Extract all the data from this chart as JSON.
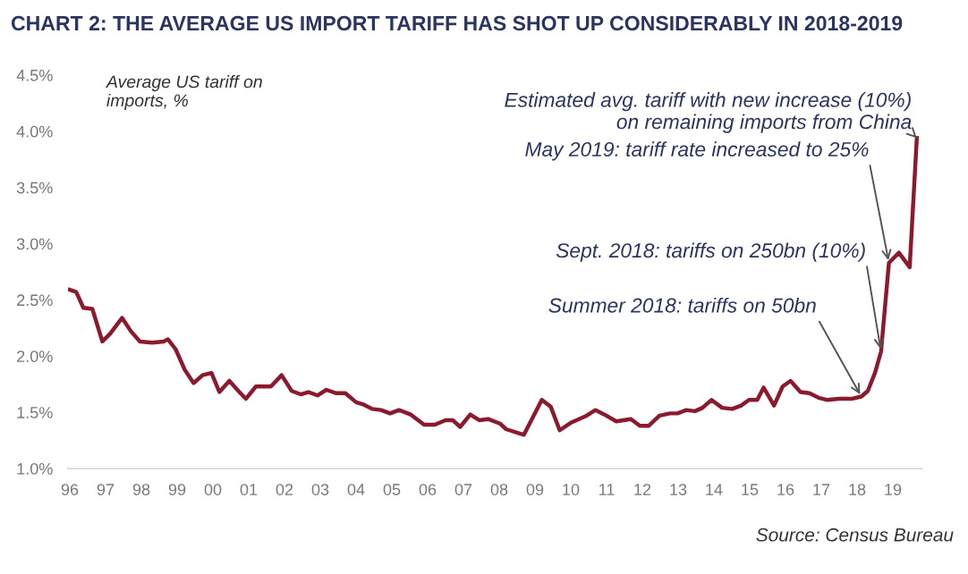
{
  "chart_data": {
    "type": "line",
    "title": "CHART 2: THE AVERAGE US IMPORT TARIFF HAS SHOT UP CONSIDERABLY IN 2018-2019",
    "ylabel": "Average US tariff on\nimports, %",
    "x": [
      1996.0,
      1996.18,
      1996.38,
      1996.63,
      1996.91,
      1997.13,
      1997.46,
      1997.71,
      1997.96,
      1998.3,
      1998.63,
      1998.74,
      1998.96,
      1999.21,
      1999.46,
      1999.71,
      1999.96,
      2000.18,
      2000.46,
      2000.71,
      2000.92,
      2001.2,
      2001.62,
      2001.92,
      2002.2,
      2002.45,
      2002.67,
      2002.92,
      2003.17,
      2003.45,
      2003.7,
      2004.0,
      2004.2,
      2004.45,
      2004.7,
      2004.95,
      2005.2,
      2005.53,
      2005.9,
      2006.2,
      2006.5,
      2006.7,
      2006.91,
      2007.19,
      2007.44,
      2007.69,
      2008.02,
      2008.19,
      2008.69,
      2009.19,
      2009.44,
      2009.69,
      2010.02,
      2010.44,
      2010.69,
      2010.94,
      2011.27,
      2011.68,
      2011.93,
      2012.18,
      2012.48,
      2012.77,
      2012.98,
      2013.23,
      2013.47,
      2013.68,
      2013.93,
      2014.23,
      2014.51,
      2014.76,
      2014.98,
      2015.21,
      2015.39,
      2015.68,
      2015.92,
      2016.14,
      2016.42,
      2016.67,
      2016.92,
      2017.17,
      2017.5,
      2017.84,
      2018.12,
      2018.3,
      2018.5,
      2018.67,
      2018.89,
      2019.17,
      2019.47,
      2019.67
    ],
    "series": [
      {
        "color": "#8b1a2e",
        "values": [
          2.59,
          2.57,
          2.43,
          2.42,
          2.13,
          2.2,
          2.34,
          2.22,
          2.13,
          2.12,
          2.13,
          2.15,
          2.06,
          1.88,
          1.76,
          1.83,
          1.85,
          1.68,
          1.78,
          1.69,
          1.62,
          1.73,
          1.73,
          1.83,
          1.69,
          1.66,
          1.68,
          1.65,
          1.7,
          1.67,
          1.67,
          1.59,
          1.57,
          1.53,
          1.52,
          1.49,
          1.52,
          1.48,
          1.39,
          1.39,
          1.43,
          1.43,
          1.37,
          1.48,
          1.43,
          1.44,
          1.4,
          1.35,
          1.3,
          1.61,
          1.55,
          1.34,
          1.41,
          1.47,
          1.52,
          1.48,
          1.42,
          1.44,
          1.38,
          1.38,
          1.47,
          1.49,
          1.49,
          1.52,
          1.51,
          1.54,
          1.61,
          1.54,
          1.53,
          1.56,
          1.61,
          1.61,
          1.72,
          1.56,
          1.73,
          1.78,
          1.68,
          1.67,
          1.63,
          1.61,
          1.62,
          1.62,
          1.64,
          1.69,
          1.85,
          2.04,
          2.83,
          2.92,
          2.79,
          3.94
        ]
      }
    ],
    "xlim": [
      1995.95,
      2019.8
    ],
    "xticks": [
      {
        "value": 1996,
        "label": "96"
      },
      {
        "value": 1997,
        "label": "97"
      },
      {
        "value": 1998,
        "label": "98"
      },
      {
        "value": 1999,
        "label": "99"
      },
      {
        "value": 2000,
        "label": "00"
      },
      {
        "value": 2001,
        "label": "01"
      },
      {
        "value": 2002,
        "label": "02"
      },
      {
        "value": 2003,
        "label": "03"
      },
      {
        "value": 2004,
        "label": "04"
      },
      {
        "value": 2005,
        "label": "05"
      },
      {
        "value": 2006,
        "label": "06"
      },
      {
        "value": 2007,
        "label": "07"
      },
      {
        "value": 2008,
        "label": "08"
      },
      {
        "value": 2009,
        "label": "09"
      },
      {
        "value": 2010,
        "label": "10"
      },
      {
        "value": 2011,
        "label": "11"
      },
      {
        "value": 2012,
        "label": "12"
      },
      {
        "value": 2013,
        "label": "13"
      },
      {
        "value": 2014,
        "label": "14"
      },
      {
        "value": 2015,
        "label": "15"
      },
      {
        "value": 2016,
        "label": "16"
      },
      {
        "value": 2017,
        "label": "17"
      },
      {
        "value": 2018,
        "label": "18"
      },
      {
        "value": 2019,
        "label": "19"
      }
    ],
    "ylim": [
      1.0,
      4.5
    ],
    "yticks": [
      {
        "value": 1.0,
        "label": "1.0%"
      },
      {
        "value": 1.5,
        "label": "1.5%"
      },
      {
        "value": 2.0,
        "label": "2.0%"
      },
      {
        "value": 2.5,
        "label": "2.5%"
      },
      {
        "value": 3.0,
        "label": "3.0%"
      },
      {
        "value": 3.5,
        "label": "3.5%"
      },
      {
        "value": 4.0,
        "label": "4.0%"
      },
      {
        "value": 4.5,
        "label": "4.5%"
      }
    ],
    "grid": false,
    "legend": false,
    "annotations": [
      {
        "text": "Estimated avg. tariff with new increase (10%)\non remaining imports from China",
        "x": 2019.67,
        "y": 3.94
      },
      {
        "text": "May 2019: tariff rate increased to 25%",
        "x": 2018.89,
        "y": 2.83
      },
      {
        "text": "Sept. 2018: tariffs on 250bn (10%)",
        "x": 2018.67,
        "y": 2.04
      },
      {
        "text": "Summer 2018: tariffs on 50bn",
        "x": 2018.12,
        "y": 1.64
      },
      "Source: Census Bureau"
    ]
  }
}
